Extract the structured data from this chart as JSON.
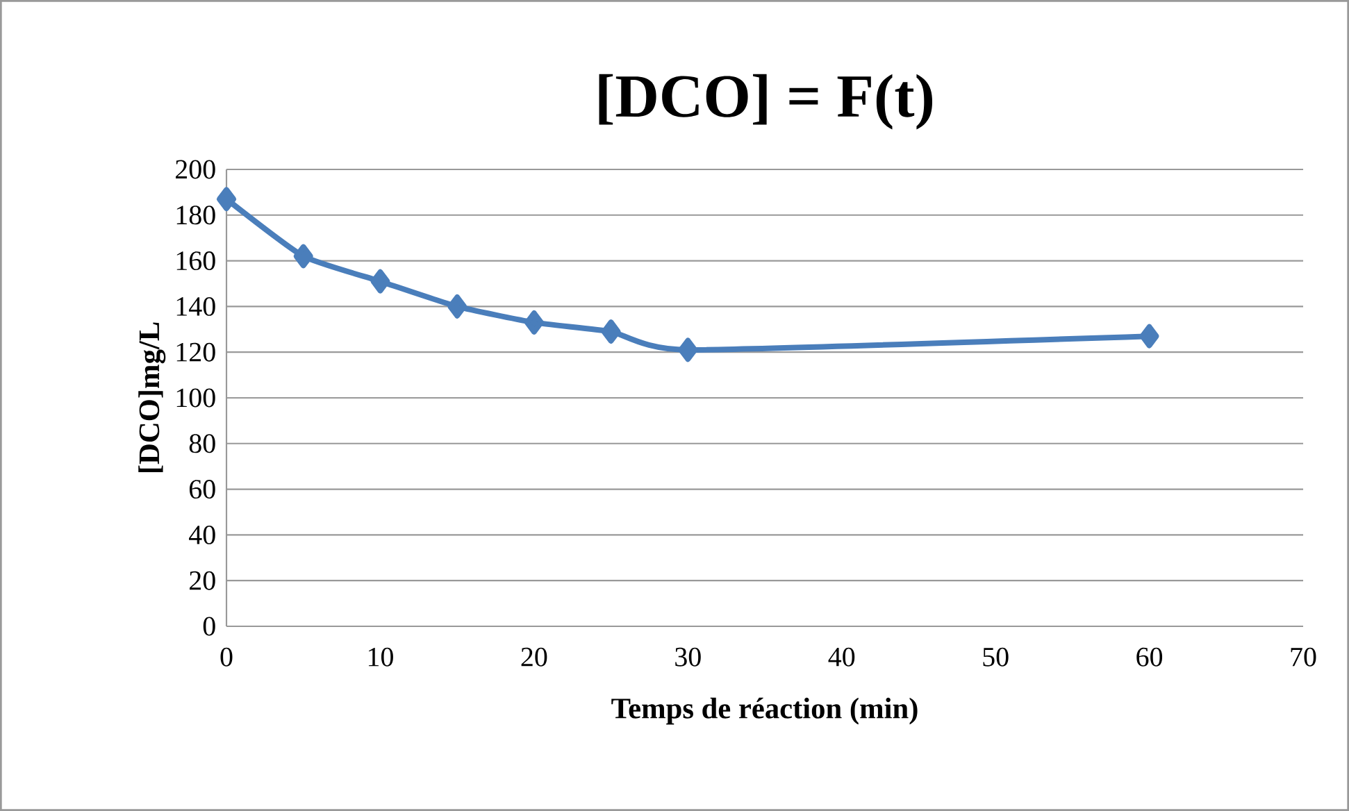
{
  "chart_data": {
    "type": "line",
    "title": "[DCO] = F(t)",
    "xlabel": "Temps de réaction (min)",
    "ylabel": "[DCO]mg/L",
    "x": [
      0,
      5,
      10,
      15,
      20,
      25,
      30,
      60
    ],
    "series": [
      {
        "color": "#4a7ebb",
        "values": [
          187,
          162,
          151,
          140,
          133,
          129,
          121,
          127
        ]
      }
    ],
    "xlim": [
      0,
      70
    ],
    "xticks": [
      0,
      10,
      20,
      30,
      40,
      50,
      60,
      70
    ],
    "ylim": [
      0,
      200
    ],
    "yticks": [
      0,
      20,
      40,
      60,
      80,
      100,
      120,
      140,
      160,
      180,
      200
    ],
    "grid": "y",
    "marker": "diamond",
    "line_style": "solid"
  }
}
